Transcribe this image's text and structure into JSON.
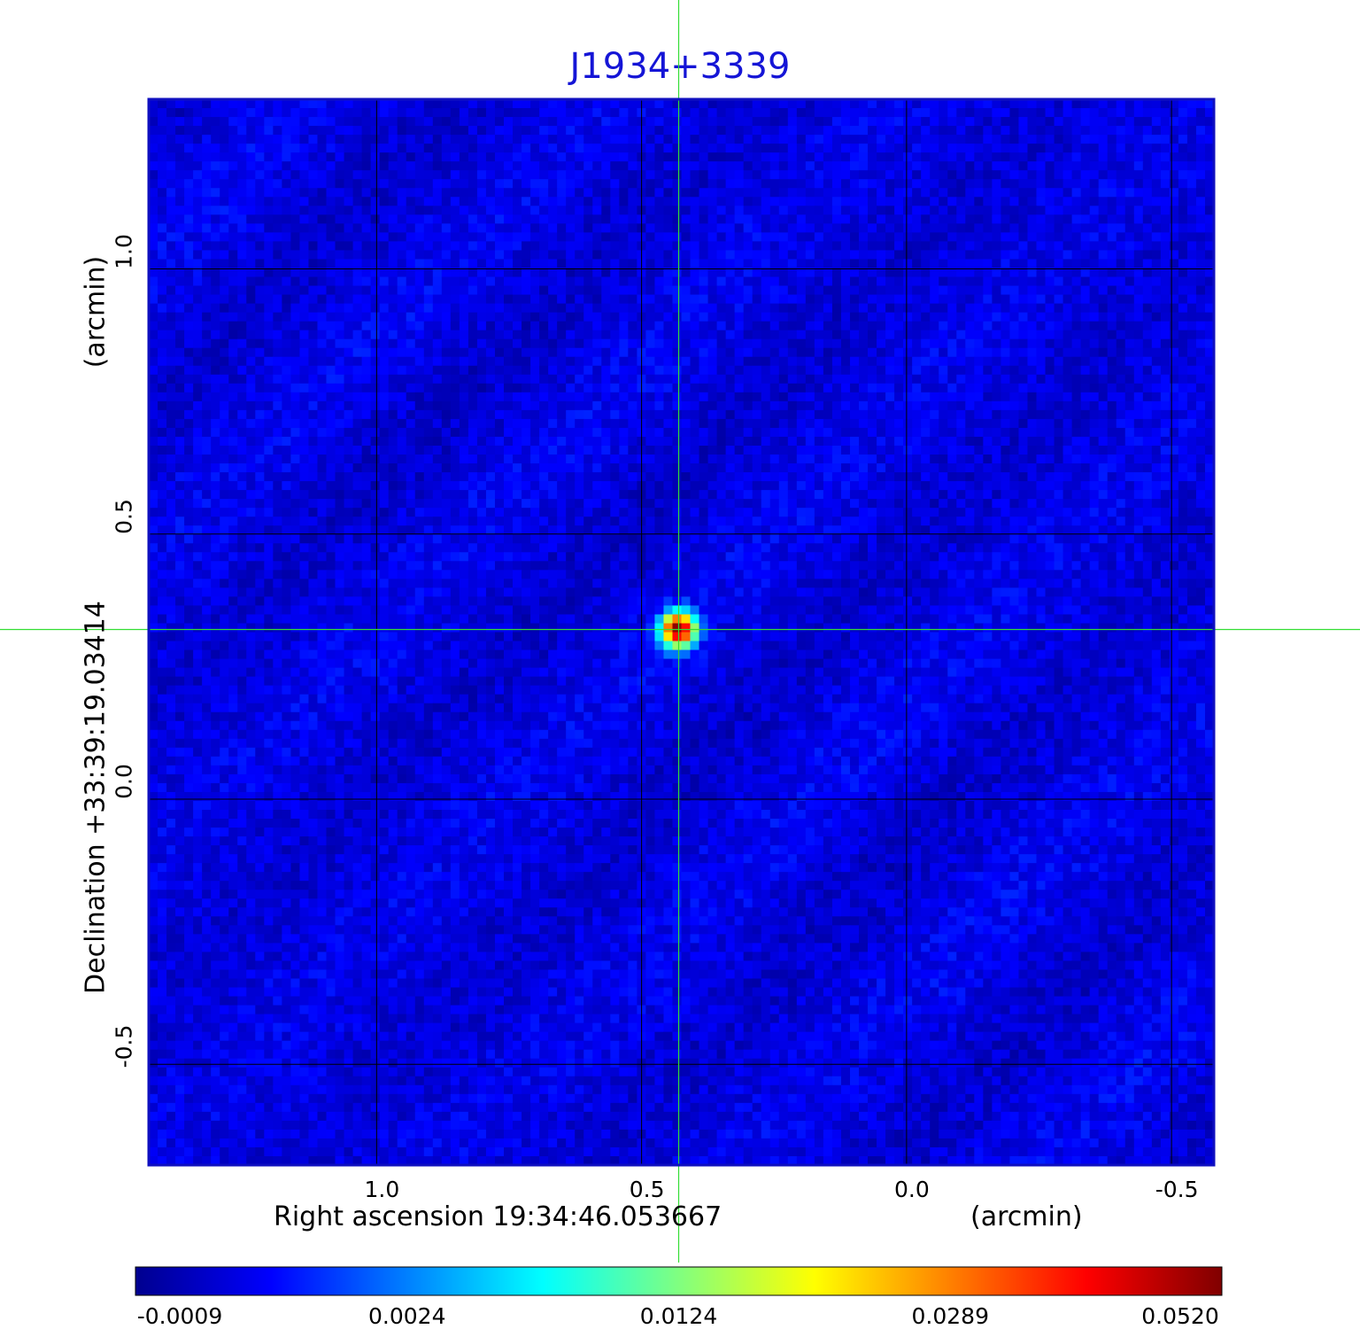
{
  "chart_data": {
    "type": "heatmap",
    "title": "J1934+3339",
    "xlabel": "Right ascension  19:34:46.053667",
    "xunit": "(arcmin)",
    "ylabel": "Declination  +33:39:19.03414",
    "yunit": "(arcmin)",
    "xlim": [
      1.43,
      -0.58
    ],
    "ylim": [
      -0.69,
      1.32
    ],
    "x_ticks": [
      {
        "value": 1.0,
        "label": "1.0"
      },
      {
        "value": 0.5,
        "label": "0.5"
      },
      {
        "value": 0.0,
        "label": "0.0"
      },
      {
        "value": -0.5,
        "label": "-0.5"
      }
    ],
    "y_ticks": [
      {
        "value": 1.0,
        "label": "1.0"
      },
      {
        "value": 0.5,
        "label": "0.5"
      },
      {
        "value": 0.0,
        "label": "0.0"
      },
      {
        "value": -0.5,
        "label": "-0.5"
      }
    ],
    "grid": true,
    "crosshair": {
      "x": 0.43,
      "y": 0.32,
      "color": "#33dd33"
    },
    "source": {
      "x": 0.43,
      "y": 0.32,
      "peak": 0.052
    },
    "background_level": 0.0003,
    "colorbar": {
      "colormap": "jet",
      "ticks": [
        {
          "value": -0.0009,
          "label": "-0.0009"
        },
        {
          "value": 0.0024,
          "label": "0.0024"
        },
        {
          "value": 0.0124,
          "label": "0.0124"
        },
        {
          "value": 0.0289,
          "label": "0.0289"
        },
        {
          "value": 0.052,
          "label": "0.0520"
        }
      ],
      "stops": [
        "#00008f",
        "#0000ff",
        "#0080ff",
        "#00ffff",
        "#80ff80",
        "#ffff00",
        "#ff8000",
        "#ff0000",
        "#800000"
      ]
    }
  }
}
